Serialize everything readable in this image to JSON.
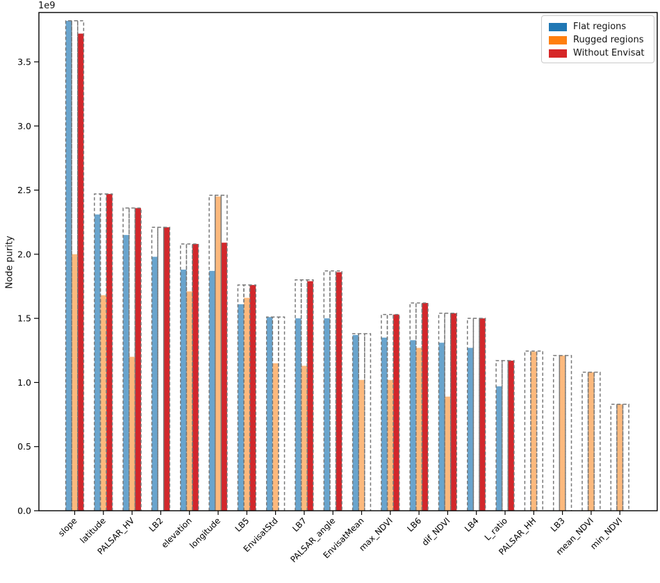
{
  "figure": {
    "ylabel": "Node purity",
    "offset_text": "1e9"
  },
  "chart_data": {
    "type": "bar",
    "title": "",
    "xlabel": "",
    "ylabel": "Node purity",
    "y_offset_text": "1e9",
    "values_scale": "1e9",
    "ylim": [
      0,
      3.884
    ],
    "yticks": [
      0.0,
      0.5,
      1.0,
      1.5,
      2.0,
      2.5,
      3.0,
      3.5
    ],
    "grid": false,
    "legend_position": "upper right",
    "categories": [
      "slope",
      "latitude",
      "PALSAR_HV",
      "LB2",
      "elevation",
      "longitude",
      "LB5",
      "EnvisatStd",
      "LB7",
      "PALSAR_angle",
      "EnvisatMean",
      "max_NDVI",
      "LB6",
      "dif_NDVI",
      "LB4",
      "L_ratio",
      "PALSAR_HH",
      "LB3",
      "mean_NDVI",
      "min_NDVI"
    ],
    "series": [
      {
        "name": "Flat regions",
        "legend_color": "#1f77b4",
        "bar_color": "#69a4cd",
        "values": [
          3.82,
          2.31,
          2.15,
          1.98,
          1.88,
          1.87,
          1.61,
          1.51,
          1.5,
          1.5,
          1.37,
          1.35,
          1.33,
          1.31,
          1.27,
          0.97,
          null,
          null,
          null,
          null
        ]
      },
      {
        "name": "Rugged regions",
        "legend_color": "#ff7f0e",
        "bar_color": "#fcb97d",
        "values": [
          2.0,
          1.68,
          1.2,
          null,
          1.71,
          2.45,
          1.66,
          1.15,
          1.13,
          null,
          1.02,
          1.02,
          1.27,
          0.89,
          null,
          null,
          1.24,
          1.21,
          1.08,
          0.83
        ]
      },
      {
        "name": "Without Envisat",
        "legend_color": "#d62728",
        "bar_color": "#d2272b",
        "values": [
          3.72,
          2.47,
          2.36,
          2.21,
          2.08,
          2.09,
          1.76,
          null,
          1.79,
          1.86,
          null,
          1.53,
          1.62,
          1.54,
          1.5,
          1.17,
          null,
          null,
          null,
          null
        ]
      }
    ],
    "reference_outline": {
      "style": "dashed",
      "color": "#787878",
      "values": [
        3.82,
        2.47,
        2.36,
        2.21,
        2.08,
        2.46,
        1.76,
        1.51,
        1.8,
        1.87,
        1.38,
        1.53,
        1.62,
        1.54,
        1.5,
        1.17,
        1.245,
        1.21,
        1.08,
        0.83
      ]
    }
  },
  "legend": {
    "items": [
      {
        "label": "Flat regions",
        "color": "#1f77b4"
      },
      {
        "label": "Rugged regions",
        "color": "#ff7f0e"
      },
      {
        "label": "Without Envisat",
        "color": "#d62728"
      }
    ]
  }
}
